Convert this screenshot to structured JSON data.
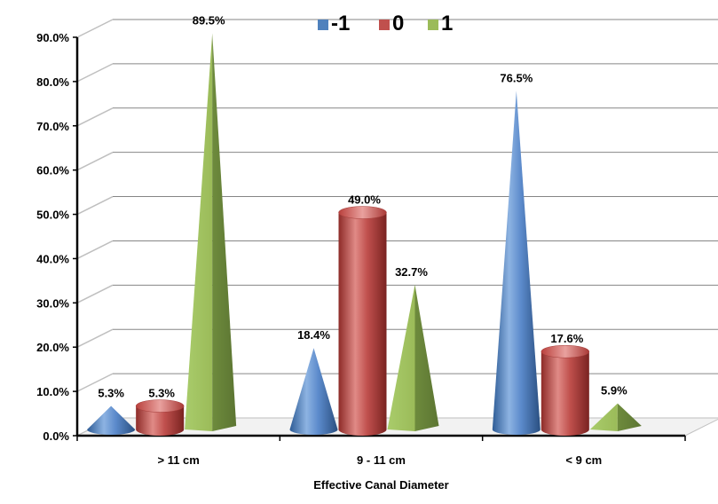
{
  "chart_data": {
    "type": "bar",
    "title": "",
    "xlabel": "Effective Canal Diameter",
    "ylabel": "",
    "categories": [
      "> 11 cm",
      "9 - 11 cm",
      "< 9 cm"
    ],
    "ylim": [
      0,
      90
    ],
    "yticks": [
      "0.0%",
      "10.0%",
      "20.0%",
      "30.0%",
      "40.0%",
      "50.0%",
      "60.0%",
      "70.0%",
      "80.0%",
      "90.0%"
    ],
    "grid": true,
    "legend_position": "top-center",
    "series": [
      {
        "name": "-1",
        "shape": "cone",
        "color": "#4F81BD",
        "values": [
          5.3,
          18.4,
          76.5
        ],
        "labels": [
          "5.3%",
          "18.4%",
          "76.5%"
        ]
      },
      {
        "name": "0",
        "shape": "cylinder",
        "color": "#C0504D",
        "values": [
          5.3,
          49.0,
          17.6
        ],
        "labels": [
          "5.3%",
          "49.0%",
          "17.6%"
        ]
      },
      {
        "name": "1",
        "shape": "pyramid",
        "color": "#9BBB59",
        "values": [
          89.5,
          32.7,
          5.9
        ],
        "labels": [
          "89.5%",
          "32.7%",
          "5.9%"
        ]
      }
    ]
  }
}
